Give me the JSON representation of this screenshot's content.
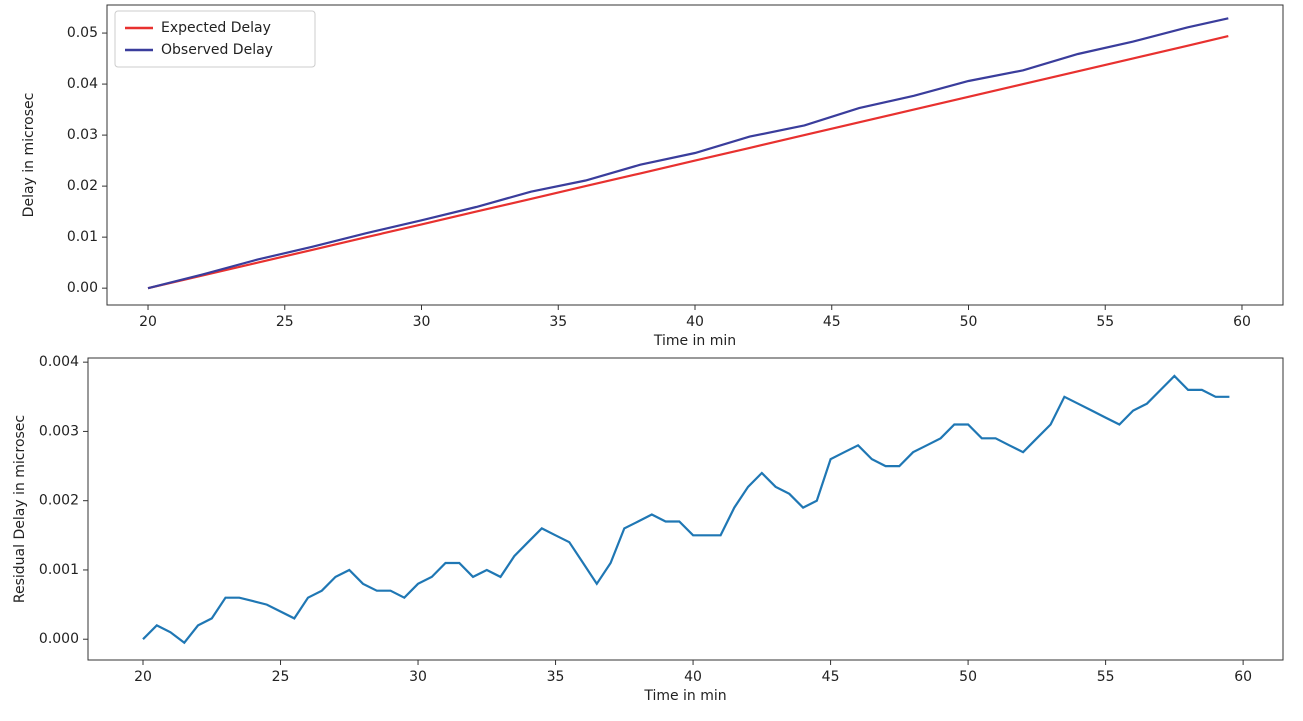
{
  "chart_data": [
    {
      "type": "line",
      "xlabel": "Time in min",
      "ylabel": "Delay in microsec",
      "x": [
        20,
        22,
        24,
        26,
        28,
        30,
        32,
        34,
        36,
        38,
        40,
        42,
        44,
        46,
        48,
        50,
        52,
        54,
        56,
        58,
        59.5
      ],
      "series": [
        {
          "name": "Expected Delay",
          "color": "#e8312f",
          "values": [
            0,
            0.0025,
            0.005,
            0.0075,
            0.01,
            0.0125,
            0.015,
            0.0175,
            0.02,
            0.0225,
            0.025,
            0.0275,
            0.03,
            0.0325,
            0.035,
            0.0375,
            0.04,
            0.0425,
            0.045,
            0.0475,
            0.0494
          ]
        },
        {
          "name": "Observed Delay",
          "color": "#3a3d9c",
          "values": [
            0,
            0.0027,
            0.0056,
            0.0081,
            0.0108,
            0.0133,
            0.0159,
            0.0189,
            0.0211,
            0.0242,
            0.0265,
            0.0297,
            0.0319,
            0.0353,
            0.0377,
            0.0406,
            0.0427,
            0.0459,
            0.0483,
            0.0511,
            0.0529
          ]
        }
      ],
      "xlim": [
        18.5,
        61.5
      ],
      "ylim": [
        -0.0033,
        0.0555
      ],
      "xticks": [
        20,
        25,
        30,
        35,
        40,
        45,
        50,
        55,
        60
      ],
      "yticks": [
        {
          "value": 0,
          "label": "0.00"
        },
        0.01,
        0.02,
        0.03,
        0.04,
        0.05
      ],
      "legend": "upper left"
    },
    {
      "type": "line",
      "xlabel": "Time in min",
      "ylabel": "Residual Delay in microsec",
      "x": [
        20,
        20.5,
        21,
        21.5,
        22,
        22.5,
        23,
        23.5,
        24,
        24.5,
        25,
        25.5,
        26,
        26.5,
        27,
        27.5,
        28,
        28.5,
        29,
        29.5,
        30,
        30.5,
        31,
        31.5,
        32,
        32.5,
        33,
        33.5,
        34,
        34.5,
        35,
        35.5,
        36,
        36.5,
        37,
        37.5,
        38,
        38.5,
        39,
        39.5,
        40,
        40.5,
        41,
        41.5,
        42,
        42.5,
        43,
        43.5,
        44,
        44.5,
        45,
        45.5,
        46,
        46.5,
        47,
        47.5,
        48,
        48.5,
        49,
        49.5,
        50,
        50.5,
        51,
        51.5,
        52,
        52.5,
        53,
        53.5,
        54,
        54.5,
        55,
        55.5,
        56,
        56.5,
        57,
        57.5,
        58,
        58.5,
        59,
        59.5
      ],
      "series": [
        {
          "color": "#1f77b4",
          "values": [
            0,
            0.0002,
            0.0001,
            -5e-05,
            0.0002,
            0.0003,
            0.0006,
            0.0006,
            0.00055,
            0.0005,
            0.0004,
            0.0003,
            0.0006,
            0.0007,
            0.0009,
            0.001,
            0.0008,
            0.0007,
            0.0007,
            0.0006,
            0.0008,
            0.0009,
            0.0011,
            0.0011,
            0.0009,
            0.001,
            0.0009,
            0.0012,
            0.0014,
            0.0016,
            0.0015,
            0.0014,
            0.0011,
            0.0008,
            0.0011,
            0.0016,
            0.0017,
            0.0018,
            0.0017,
            0.0017,
            0.0015,
            0.0015,
            0.0015,
            0.0019,
            0.0022,
            0.0024,
            0.0022,
            0.0021,
            0.0019,
            0.002,
            0.0026,
            0.0027,
            0.0028,
            0.0026,
            0.0025,
            0.0025,
            0.0027,
            0.0028,
            0.0029,
            0.0031,
            0.0031,
            0.0029,
            0.0029,
            0.0028,
            0.0027,
            0.0029,
            0.0031,
            0.0035,
            0.0034,
            0.0033,
            0.0032,
            0.0031,
            0.0033,
            0.0034,
            0.0036,
            0.0038,
            0.0036,
            0.0036,
            0.0035,
            0.0035
          ]
        }
      ],
      "xlim": [
        18,
        61.45
      ],
      "ylim": [
        -0.0003,
        0.00406
      ],
      "xticks": [
        20,
        25,
        30,
        35,
        40,
        45,
        50,
        55,
        60
      ],
      "yticks": [
        {
          "value": 0,
          "label": "0.000"
        },
        0.001,
        0.002,
        0.003,
        0.004
      ]
    }
  ]
}
